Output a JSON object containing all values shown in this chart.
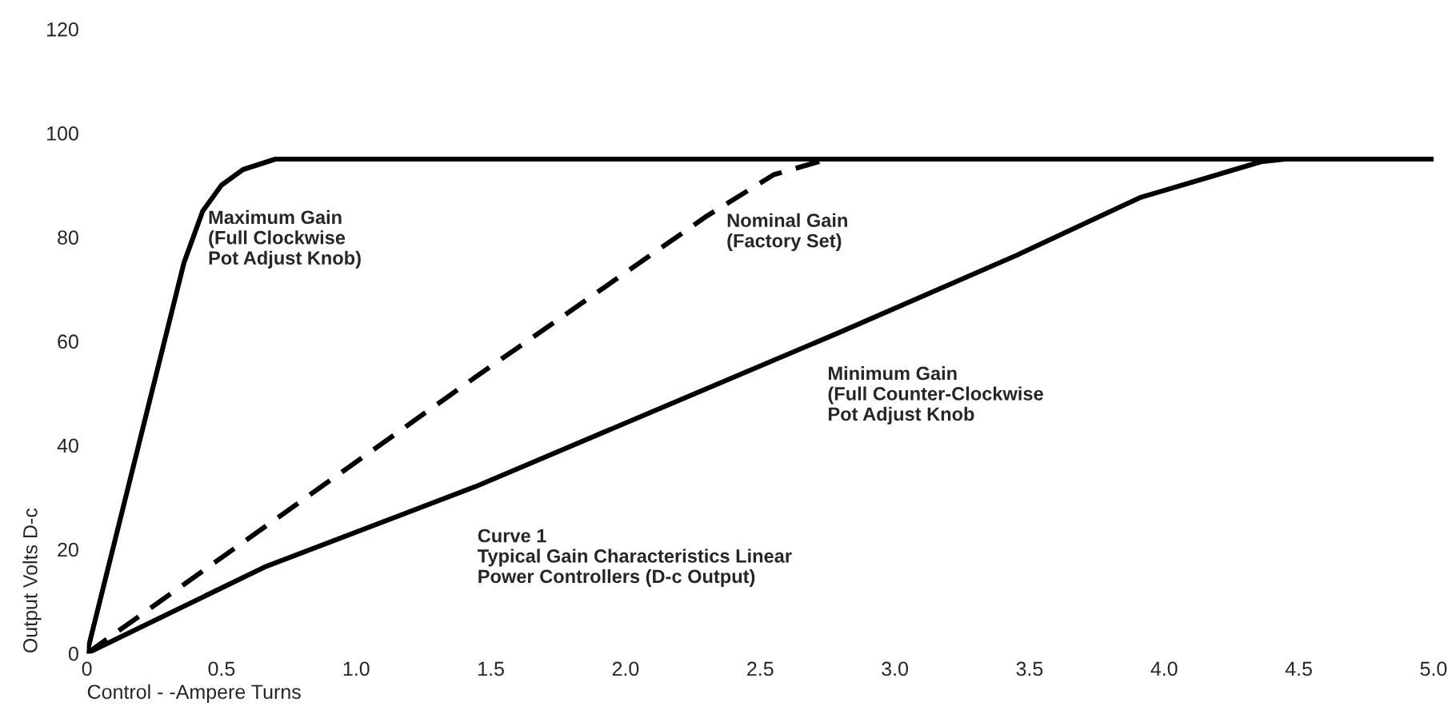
{
  "chart_data": {
    "type": "line",
    "xlabel": "Control - -Ampere Turns",
    "ylabel": "Output Volts D-c",
    "xlim": [
      0,
      5.0
    ],
    "xticks": [
      {
        "value": 0,
        "label": "0"
      },
      0.5,
      {
        "value": 1,
        "label": "1.0"
      },
      1.5,
      {
        "value": 2,
        "label": "2.0"
      },
      2.5,
      {
        "value": 3,
        "label": "3.0"
      },
      3.5,
      {
        "value": 4,
        "label": "4.0"
      },
      4.5,
      {
        "value": 5,
        "label": "5.0"
      }
    ],
    "ylim": [
      0,
      120
    ],
    "yticks": [
      0,
      20,
      40,
      60,
      80,
      100,
      120
    ],
    "grid": false,
    "legend": false,
    "marker": "none",
    "series": [
      {
        "name": "Maximum Gain\n(Full Clockwise\nPot Adjust Knob)",
        "color": "#000000",
        "line_style": "solid",
        "x": [
          0,
          0.36,
          0.43,
          0.5,
          0.58,
          0.7,
          5.0
        ],
        "values": [
          0,
          75,
          85,
          90,
          93,
          95,
          95
        ]
      },
      {
        "name": "Nominal Gain\n(Factory Set)",
        "color": "#000000",
        "line_style": "dashed",
        "x": [
          0,
          1.44,
          2.3,
          2.55,
          2.75
        ],
        "values": [
          0,
          53,
          84,
          92,
          95
        ]
      },
      {
        "name": "Minimum Gain\n(Full Counter-Clockwise\nPot Adjust Knob",
        "color": "#000000",
        "line_style": "solid",
        "x": [
          0,
          0.66,
          1.44,
          2.79,
          3.46,
          3.91,
          4.36,
          4.45,
          5.0
        ],
        "values": [
          0,
          16.6,
          32,
          61.6,
          76.7,
          87.6,
          94.5,
          95,
          95
        ]
      }
    ],
    "annotations": [
      "Curve 1\nTypical Gain Characteristics Linear\nPower Controllers (D-c Output)"
    ]
  }
}
